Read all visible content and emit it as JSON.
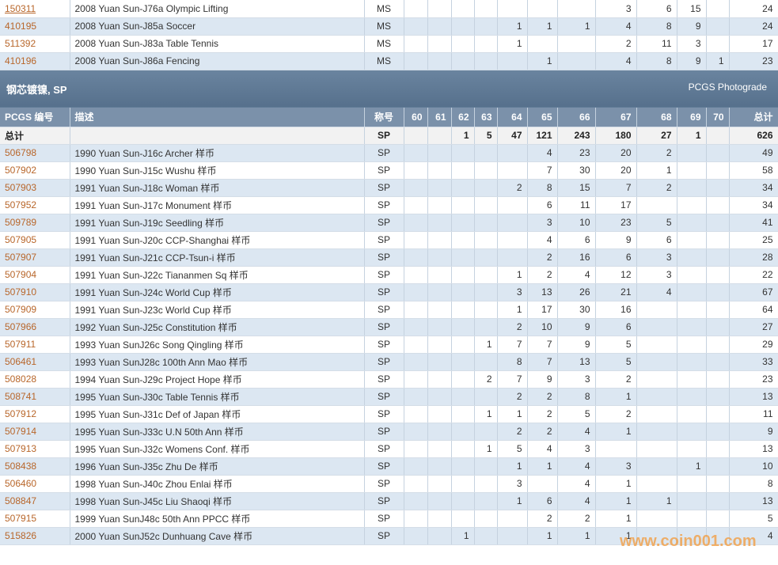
{
  "top_rows": [
    [
      "150311",
      "2008 Yuan Sun-J76a Olympic Lifting",
      "MS",
      null,
      null,
      null,
      null,
      null,
      null,
      null,
      3,
      6,
      15,
      null,
      24
    ],
    [
      "410195",
      "2008 Yuan Sun-J85a Soccer",
      "MS",
      null,
      null,
      null,
      null,
      1,
      1,
      1,
      4,
      8,
      9,
      null,
      24
    ],
    [
      "511392",
      "2008 Yuan Sun-J83a Table Tennis",
      "MS",
      null,
      null,
      null,
      null,
      1,
      null,
      null,
      2,
      11,
      3,
      null,
      17
    ],
    [
      "410196",
      "2008 Yuan Sun-J86a Fencing",
      "MS",
      null,
      null,
      null,
      null,
      null,
      1,
      null,
      4,
      8,
      9,
      1,
      23
    ]
  ],
  "section": {
    "title": "钢芯镀镍, SP",
    "subtitle": "PCGS Photograde"
  },
  "header": [
    "PCGS 编号",
    "描述",
    "称号",
    "60",
    "61",
    "62",
    "63",
    "64",
    "65",
    "66",
    "67",
    "68",
    "69",
    "70",
    "总计"
  ],
  "total_row": [
    "总计",
    null,
    "SP",
    null,
    null,
    1,
    5,
    47,
    121,
    243,
    180,
    27,
    1,
    null,
    626
  ],
  "rows": [
    [
      "506798",
      "1990 Yuan Sun-J16c Archer 样币",
      "SP",
      null,
      null,
      null,
      null,
      null,
      4,
      23,
      20,
      2,
      null,
      null,
      49
    ],
    [
      "507902",
      "1990 Yuan Sun-J15c Wushu 样币",
      "SP",
      null,
      null,
      null,
      null,
      null,
      7,
      30,
      20,
      1,
      null,
      null,
      58
    ],
    [
      "507903",
      "1991 Yuan Sun-J18c Woman 样币",
      "SP",
      null,
      null,
      null,
      null,
      2,
      8,
      15,
      7,
      2,
      null,
      null,
      34
    ],
    [
      "507952",
      "1991 Yuan Sun-J17c Monument 样币",
      "SP",
      null,
      null,
      null,
      null,
      null,
      6,
      11,
      17,
      null,
      null,
      null,
      34
    ],
    [
      "509789",
      "1991 Yuan Sun-J19c Seedling 样币",
      "SP",
      null,
      null,
      null,
      null,
      null,
      3,
      10,
      23,
      5,
      null,
      null,
      41
    ],
    [
      "507905",
      "1991 Yuan Sun-J20c CCP-Shanghai 样币",
      "SP",
      null,
      null,
      null,
      null,
      null,
      4,
      6,
      9,
      6,
      null,
      null,
      25
    ],
    [
      "507907",
      "1991 Yuan Sun-J21c CCP-Tsun-i 样币",
      "SP",
      null,
      null,
      null,
      null,
      null,
      2,
      16,
      6,
      3,
      null,
      null,
      28
    ],
    [
      "507904",
      "1991 Yuan Sun-J22c Tiananmen Sq 样币",
      "SP",
      null,
      null,
      null,
      null,
      1,
      2,
      4,
      12,
      3,
      null,
      null,
      22
    ],
    [
      "507910",
      "1991 Yuan Sun-J24c World Cup 样币",
      "SP",
      null,
      null,
      null,
      null,
      3,
      13,
      26,
      21,
      4,
      null,
      null,
      67
    ],
    [
      "507909",
      "1991 Yuan Sun-J23c World Cup 样币",
      "SP",
      null,
      null,
      null,
      null,
      1,
      17,
      30,
      16,
      null,
      null,
      null,
      64
    ],
    [
      "507966",
      "1992 Yuan Sun-J25c Constitution 样币",
      "SP",
      null,
      null,
      null,
      null,
      2,
      10,
      9,
      6,
      null,
      null,
      null,
      27
    ],
    [
      "507911",
      "1993 Yuan SunJ26c Song Qingling 样币",
      "SP",
      null,
      null,
      null,
      1,
      7,
      7,
      9,
      5,
      null,
      null,
      null,
      29
    ],
    [
      "506461",
      "1993 Yuan SunJ28c 100th Ann Mao 样币",
      "SP",
      null,
      null,
      null,
      null,
      8,
      7,
      13,
      5,
      null,
      null,
      null,
      33
    ],
    [
      "508028",
      "1994 Yuan Sun-J29c Project Hope 样币",
      "SP",
      null,
      null,
      null,
      2,
      7,
      9,
      3,
      2,
      null,
      null,
      null,
      23
    ],
    [
      "508741",
      "1995 Yuan Sun-J30c Table Tennis 样币",
      "SP",
      null,
      null,
      null,
      null,
      2,
      2,
      8,
      1,
      null,
      null,
      null,
      13
    ],
    [
      "507912",
      "1995 Yuan Sun-J31c Def of Japan 样币",
      "SP",
      null,
      null,
      null,
      1,
      1,
      2,
      5,
      2,
      null,
      null,
      null,
      11
    ],
    [
      "507914",
      "1995 Yuan Sun-J33c U.N 50th Ann 样币",
      "SP",
      null,
      null,
      null,
      null,
      2,
      2,
      4,
      1,
      null,
      null,
      null,
      9
    ],
    [
      "507913",
      "1995 Yuan Sun-J32c Womens Conf. 样币",
      "SP",
      null,
      null,
      null,
      1,
      5,
      4,
      3,
      null,
      null,
      null,
      null,
      13
    ],
    [
      "508438",
      "1996 Yuan Sun-J35c Zhu De 样币",
      "SP",
      null,
      null,
      null,
      null,
      1,
      1,
      4,
      3,
      null,
      1,
      null,
      10
    ],
    [
      "506460",
      "1998 Yuan Sun-J40c Zhou Enlai 样币",
      "SP",
      null,
      null,
      null,
      null,
      3,
      null,
      4,
      1,
      null,
      null,
      null,
      8
    ],
    [
      "508847",
      "1998 Yuan Sun-J45c Liu Shaoqi 样币",
      "SP",
      null,
      null,
      null,
      null,
      1,
      6,
      4,
      1,
      1,
      null,
      null,
      13
    ],
    [
      "507915",
      "1999 Yuan SunJ48c 50th Ann PPCC 样币",
      "SP",
      null,
      null,
      null,
      null,
      null,
      2,
      2,
      1,
      null,
      null,
      null,
      5
    ],
    [
      "515826",
      "2000 Yuan SunJ52c Dunhuang Cave 样币",
      "SP",
      null,
      null,
      1,
      null,
      null,
      1,
      1,
      1,
      null,
      null,
      null,
      4
    ]
  ],
  "watermark": "www.coin001.com"
}
